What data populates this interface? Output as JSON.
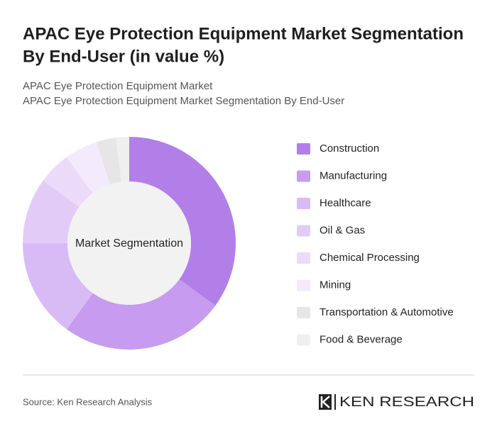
{
  "chart_data": {
    "type": "donut",
    "title": [
      "APAC Eye Protection Equipment Market Segmentation",
      "By End-User (in value %)"
    ],
    "subtitle": [
      "APAC Eye Protection Equipment Market",
      "APAC Eye Protection Equipment Market Segmentation By End-User"
    ],
    "center_label": "Market Segmentation",
    "categories": [
      "Construction",
      "Manufacturing",
      "Healthcare",
      "Oil & Gas",
      "Chemical Processing",
      "Mining",
      "Transportation & Automotive",
      "Food & Beverage"
    ],
    "values": [
      35,
      25,
      15,
      10,
      5,
      5,
      3,
      2
    ],
    "colors": [
      "#b27fe9",
      "#c69bf0",
      "#d8bbf5",
      "#e2ccf7",
      "#ebdbf9",
      "#f3ebfc",
      "#e6e6e6",
      "#efefef"
    ],
    "source": "Source: Ken Research Analysis",
    "brand": "KEN RESEARCH"
  }
}
